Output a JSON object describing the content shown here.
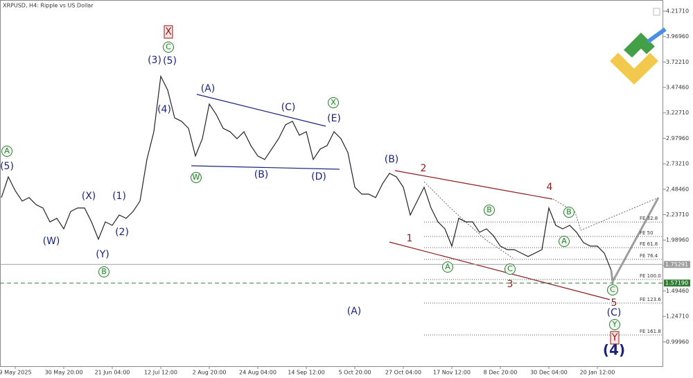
{
  "chart_data": {
    "type": "line",
    "title": "XRPUSD, H4:  Ripple vs US Dollar",
    "color": "#222222",
    "values": [
      2.403,
      2.605,
      2.47,
      2.369,
      2.403,
      2.335,
      2.302,
      2.167,
      2.201,
      2.099,
      2.268,
      2.302,
      2.302,
      2.167,
      1.998,
      2.167,
      2.133,
      2.234,
      2.201,
      2.268,
      2.369,
      2.774,
      3.044,
      3.583,
      3.448,
      3.178,
      3.145,
      3.077,
      2.808,
      2.976,
      3.313,
      3.212,
      3.077,
      3.044,
      2.976,
      3.044,
      2.909,
      2.808,
      2.774,
      2.875,
      2.976,
      3.111,
      3.145,
      3.01,
      3.044,
      2.774,
      2.875,
      2.909,
      3.044,
      2.976,
      2.841,
      2.504,
      2.437,
      2.437,
      2.403,
      2.538,
      2.639,
      2.605,
      2.504,
      2.234,
      2.369,
      2.504,
      2.302,
      2.167,
      2.099,
      1.931,
      2.201,
      2.167,
      2.167,
      2.066,
      2.099,
      2.032,
      1.931,
      1.897,
      1.897,
      1.863,
      1.83,
      1.863,
      1.897,
      2.302,
      2.133,
      2.099,
      2.133,
      2.066,
      1.965,
      1.931,
      1.931,
      1.863,
      1.695
    ],
    "xlim": [
      -0.2,
      95.5
    ],
    "xticks": [
      {
        "value": 2,
        "label": "9 May 2025"
      },
      {
        "value": 9,
        "label": "30 May 20:00"
      },
      {
        "value": 16,
        "label": "21 Jun 04:00"
      },
      {
        "value": 23,
        "label": "12 Jul 12:00"
      },
      {
        "value": 30,
        "label": "2 Aug 20:00"
      },
      {
        "value": 37,
        "label": "24 Aug 04:00"
      },
      {
        "value": 44,
        "label": "14 Sep 12:00"
      },
      {
        "value": 51,
        "label": "5 Oct 20:00"
      },
      {
        "value": 58,
        "label": "27 Oct 04:00"
      },
      {
        "value": 65,
        "label": "17 Nov 12:00"
      },
      {
        "value": 72,
        "label": "8 Dec 20:00"
      },
      {
        "value": 79,
        "label": "30 Dec 04:00"
      },
      {
        "value": 86,
        "label": "20 Jan 12:00"
      }
    ],
    "ylim": [
      0.763,
      4.325
    ],
    "yticks": [
      {
        "value": 4.2171,
        "label": "4.21710"
      },
      {
        "value": 3.9696,
        "label": "3.96960"
      },
      {
        "value": 3.7221,
        "label": "3.72210"
      },
      {
        "value": 3.4746,
        "label": "3.47460"
      },
      {
        "value": 3.2271,
        "label": "3.22710"
      },
      {
        "value": 2.9796,
        "label": "2.97960"
      },
      {
        "value": 2.7321,
        "label": "2.73210"
      },
      {
        "value": 2.4846,
        "label": "2.48460"
      },
      {
        "value": 2.2371,
        "label": "2.23710"
      },
      {
        "value": 1.9896,
        "label": "1.98960"
      },
      {
        "value": 1.7421,
        "label": "1.74210"
      },
      {
        "value": 1.4946,
        "label": "1.49460"
      },
      {
        "value": 1.2471,
        "label": "1.24710"
      },
      {
        "value": 0.9996,
        "label": "0.99960"
      }
    ],
    "price_lines": [
      {
        "value": 1.75291,
        "label": "1.75291",
        "color": "#9e9e9e"
      },
      {
        "value": 1.5719,
        "label": "1.57190",
        "color": "#2e7d32"
      }
    ],
    "fib_levels": [
      {
        "value": 2.165,
        "label": "FE 32.8"
      },
      {
        "value": 2.025,
        "label": "FE 50"
      },
      {
        "value": 1.917,
        "label": "FE 61.8"
      },
      {
        "value": 1.802,
        "label": "FE 76.4"
      },
      {
        "value": 1.606,
        "label": "FE 100.0"
      },
      {
        "value": 1.377,
        "label": "FE 123.6"
      },
      {
        "value": 1.067,
        "label": "FE 161.8"
      }
    ],
    "wave_labels": [
      "A",
      "(5)",
      "(W)",
      "(X)",
      "(Y)",
      "B",
      "(1)",
      "(2)",
      "(3)",
      "(5)",
      "(4)",
      "C",
      "X",
      "(A)",
      "W",
      "(B)",
      "(C)",
      "(D)",
      "X",
      "(E)",
      "(A)",
      "(B)",
      "2",
      "1",
      "A",
      "B",
      "C",
      "3",
      "4",
      "B",
      "A",
      "C",
      "5",
      "(C)",
      "Y",
      "Y",
      "(4)"
    ]
  }
}
